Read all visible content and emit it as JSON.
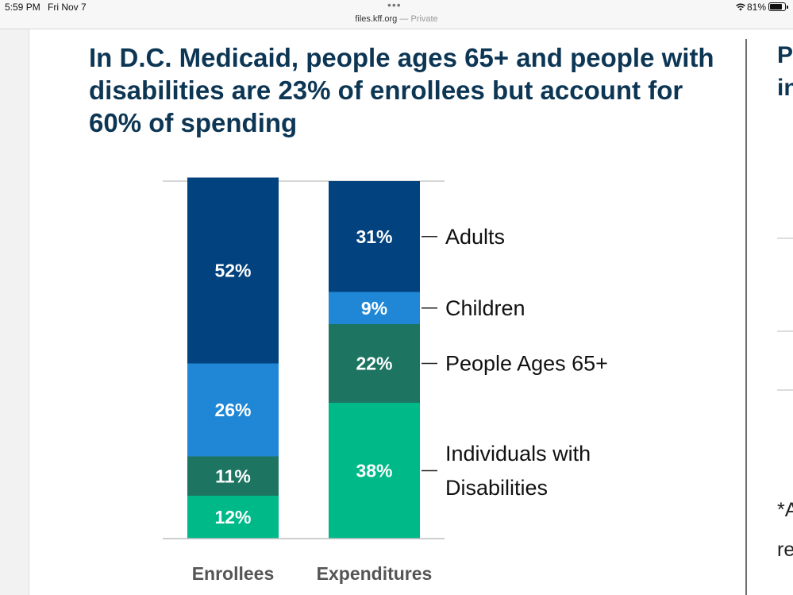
{
  "status_bar": {
    "time": "5:59 PM",
    "date": "Fri Nov 7",
    "more_glyph": "•••",
    "url": "files.kff.org",
    "separator": "—",
    "privacy": "Private",
    "battery_percent": "81%",
    "battery_level": 0.81,
    "icons": [
      "wifi-icon",
      "battery-icon"
    ]
  },
  "slide": {
    "title": "In D.C. Medicaid, people ages 65+ and people with disabilities are 23% of enrollees but account for 60% of spending"
  },
  "chart_data": {
    "type": "bar",
    "stacked": true,
    "percent_stacked": true,
    "categories": [
      "Enrollees",
      "Expenditures"
    ],
    "series": [
      {
        "name": "Individuals with Disabilities",
        "values": [
          12,
          38
        ],
        "labels": [
          "12%",
          "38%"
        ],
        "color": "#00b989"
      },
      {
        "name": "People Ages 65+",
        "values": [
          11,
          22
        ],
        "labels": [
          "11%",
          "22%"
        ],
        "color": "#1d7461"
      },
      {
        "name": "Children",
        "values": [
          26,
          9
        ],
        "labels": [
          "26%",
          "9%"
        ],
        "color": "#1f87d6"
      },
      {
        "name": "Adults",
        "values": [
          52,
          31
        ],
        "labels": [
          "52%",
          "31%"
        ],
        "color": "#02427e"
      }
    ],
    "legend": [
      {
        "lines": [
          "Adults"
        ]
      },
      {
        "lines": [
          "Children"
        ]
      },
      {
        "lines": [
          "People Ages 65+"
        ]
      },
      {
        "lines": [
          "Individuals with",
          "Disabilities"
        ]
      }
    ],
    "legend_position": "right",
    "ylim": [
      0,
      100
    ],
    "grid": false
  },
  "next_slide_peek": {
    "title_lines": [
      "P",
      "in"
    ],
    "footnote_lines": [
      "*A",
      "re"
    ]
  }
}
